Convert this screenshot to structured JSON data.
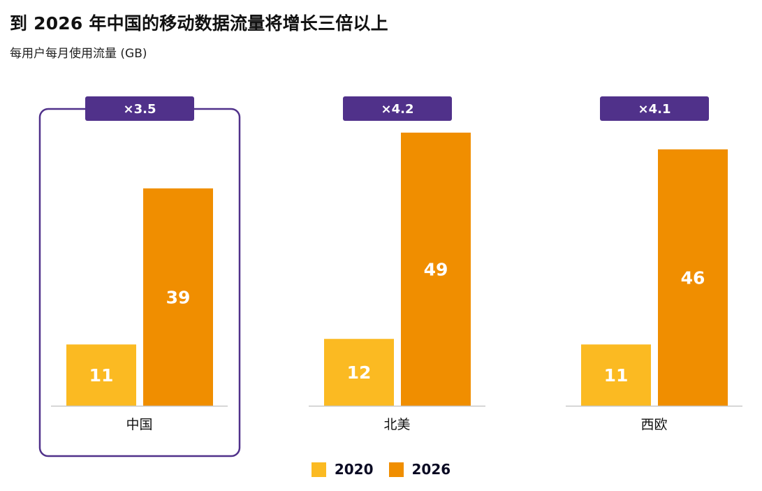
{
  "header": {
    "title": "到 2026 年中国的移动数据流量将增长三倍以上",
    "subtitle": "每用户每月使用流量 (GB)"
  },
  "colors": {
    "series_2020": "#fbba22",
    "series_2026": "#f08e00",
    "badge": "#50318a",
    "highlight_border": "#50318a",
    "baseline": "#c8c8c8"
  },
  "chart_data": {
    "type": "bar",
    "title": "到 2026 年中国的移动数据流量将增长三倍以上",
    "subtitle": "每用户每月使用流量 (GB)",
    "xlabel": "",
    "ylabel": "每用户每月使用流量 (GB)",
    "ylim": [
      0,
      55
    ],
    "grid": false,
    "categories": [
      "中国",
      "北美",
      "西欧"
    ],
    "series": [
      {
        "name": "2020",
        "values": [
          11,
          12,
          11
        ]
      },
      {
        "name": "2026",
        "values": [
          39,
          49,
          46
        ]
      }
    ],
    "annotations": [
      "×3.5",
      "×4.2",
      "×4.1"
    ],
    "highlighted_category": "中国",
    "legend": {
      "placement": "bottom-center",
      "entries": [
        "2020",
        "2026"
      ]
    }
  }
}
